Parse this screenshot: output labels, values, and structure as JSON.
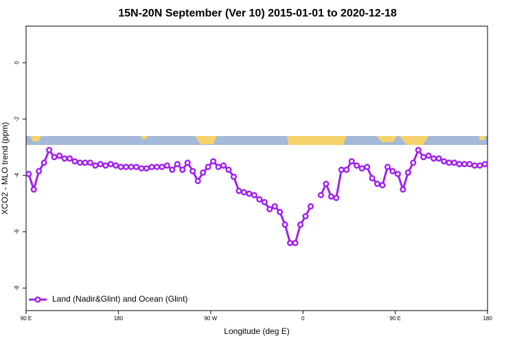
{
  "chart_data": {
    "type": "line",
    "title": "15N-20N September (Ver 10)   2015-01-01 to 2020-12-18",
    "x_label": "Longitude (deg E)",
    "y_label": "XCO2 - MLO trend (ppm)",
    "xlim": [
      90,
      540
    ],
    "ylim": [
      -8.8,
      1.3
    ],
    "xticks": [
      {
        "value": 90,
        "label": "90 E"
      },
      180,
      {
        "value": 270,
        "label": "90 W"
      },
      {
        "value": 360,
        "label": "0"
      },
      {
        "value": 450,
        "label": "90 E"
      },
      {
        "value": 540,
        "label": "180"
      }
    ],
    "yticks": [
      0,
      -2,
      -4,
      -6,
      -8
    ],
    "legend_position": "bottom-left",
    "x": [
      92.5,
      97.5,
      102.5,
      107.5,
      112.5,
      117.5,
      122.5,
      127.5,
      132.5,
      137.5,
      142.5,
      147.5,
      152.5,
      157.5,
      162.5,
      167.5,
      172.5,
      177.5,
      182.5,
      187.5,
      192.5,
      197.5,
      202.5,
      207.5,
      212.5,
      217.5,
      222.5,
      227.5,
      232.5,
      237.5,
      242.5,
      247.5,
      252.5,
      257.5,
      262.5,
      267.5,
      272.5,
      277.5,
      282.5,
      287.5,
      292.5,
      297.5,
      302.5,
      307.5,
      312.5,
      317.5,
      322.5,
      327.5,
      332.5,
      337.5,
      342.5,
      347.5,
      352.5,
      357.5,
      362.5,
      367.5,
      372.5,
      377.5,
      382.5,
      387.5,
      392.5,
      397.5,
      402.5,
      407.5,
      412.5,
      417.5,
      422.5,
      427.5,
      432.5,
      437.5,
      442.5,
      447.5,
      452.5,
      457.5,
      462.5,
      467.5,
      472.5,
      477.5,
      482.5,
      487.5,
      492.5,
      497.5,
      502.5,
      507.5,
      512.5,
      517.5,
      522.5,
      527.5,
      532.5,
      537.5
    ],
    "series": [
      {
        "name": "Land (Nadir&Glint) and Ocean (Glint)",
        "color": "#a020f0",
        "values": [
          -3.95,
          -4.5,
          -3.85,
          -3.55,
          -3.1,
          -3.35,
          -3.3,
          -3.4,
          -3.4,
          -3.5,
          -3.55,
          -3.55,
          -3.55,
          -3.65,
          -3.6,
          -3.65,
          -3.6,
          -3.65,
          -3.7,
          -3.7,
          -3.7,
          -3.7,
          -3.75,
          -3.75,
          -3.7,
          -3.7,
          -3.7,
          -3.65,
          -3.8,
          -3.6,
          -3.8,
          -3.55,
          -3.85,
          -4.2,
          -3.9,
          -3.7,
          -3.5,
          -3.7,
          -3.65,
          -3.8,
          -4.05,
          -4.55,
          -4.6,
          -4.65,
          -4.7,
          -4.85,
          -4.95,
          -5.2,
          -5.1,
          -5.3,
          -5.75,
          -6.4,
          -6.4,
          -5.75,
          -5.45,
          -5.1,
          null,
          -4.7,
          -4.3,
          -4.75,
          -4.8,
          -3.8,
          -3.8,
          -3.5,
          -3.65,
          -3.75,
          -3.7,
          -4.1,
          -4.3,
          -4.35,
          -3.7,
          -3.85,
          -3.95,
          -4.5,
          -3.9,
          -3.55,
          -3.1,
          -3.35,
          -3.3,
          -3.4,
          -3.4,
          -3.5,
          -3.55,
          -3.55,
          -3.6,
          -3.6,
          -3.6,
          -3.65,
          -3.65,
          -3.6
        ]
      }
    ]
  }
}
